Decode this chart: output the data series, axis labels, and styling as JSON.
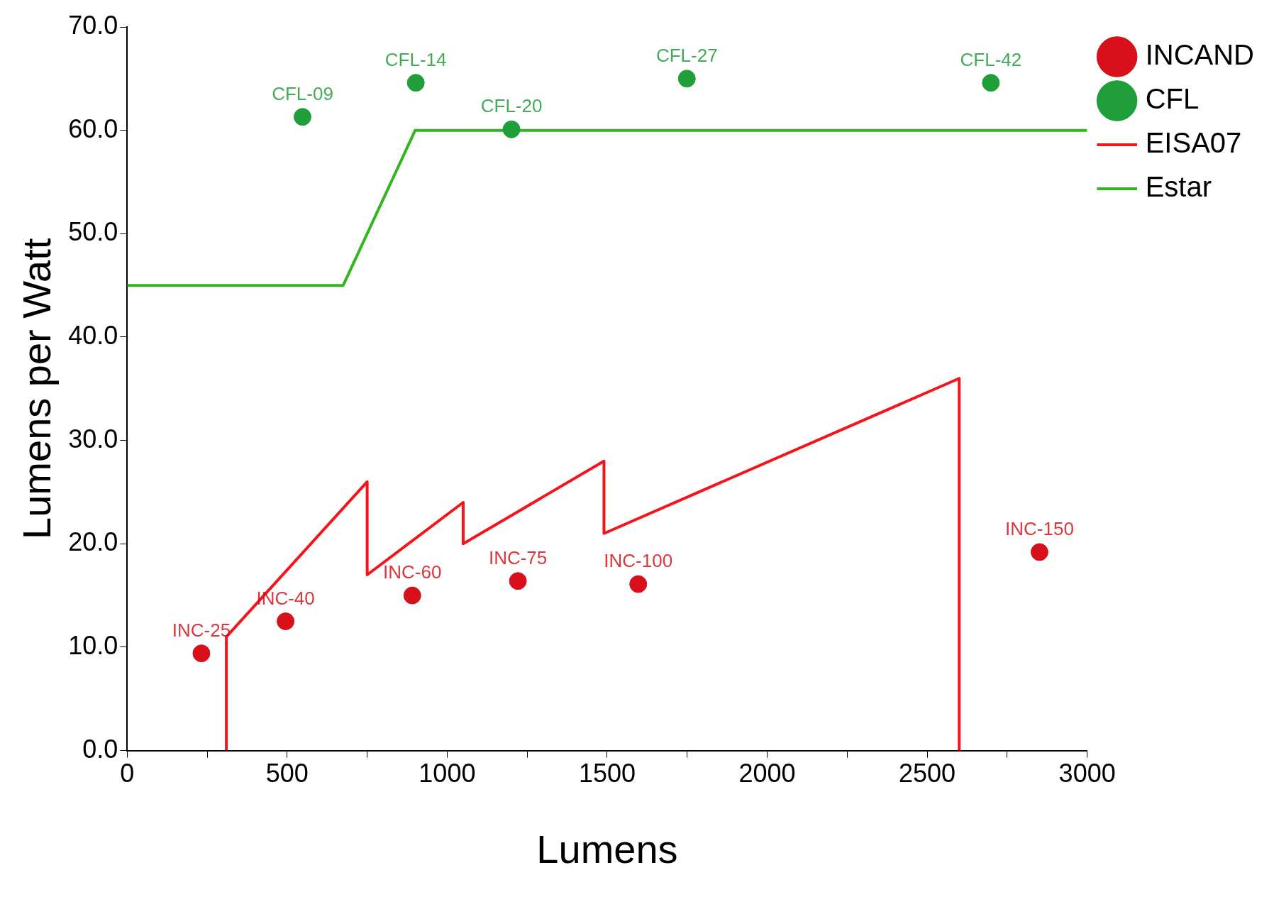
{
  "chart_data": {
    "type": "scatter",
    "xlabel": "Lumens",
    "ylabel": "Lumens per Watt",
    "xlim": [
      0,
      3000
    ],
    "xticks": [
      0,
      {
        "value": 250,
        "label": null
      },
      500,
      {
        "value": 750,
        "label": null
      },
      1000,
      {
        "value": 1250,
        "label": null
      },
      1500,
      {
        "value": 1750,
        "label": null
      },
      2000,
      {
        "value": 2250,
        "label": null
      },
      2500,
      {
        "value": 2750,
        "label": null
      },
      3000
    ],
    "ylim": [
      0,
      70
    ],
    "yticks": [
      {
        "value": 0,
        "label": "0.0"
      },
      {
        "value": 10,
        "label": "10.0"
      },
      {
        "value": 20,
        "label": "20.0"
      },
      {
        "value": 30,
        "label": "30.0"
      },
      {
        "value": 40,
        "label": "40.0"
      },
      {
        "value": 50,
        "label": "50.0"
      },
      {
        "value": 60,
        "label": "60.0"
      },
      {
        "value": 70,
        "label": "70.0"
      }
    ],
    "grid": false,
    "legend": "top right",
    "series": [
      {
        "name": "INCAND",
        "marker": "circle",
        "color": "#d8101a",
        "x": [
          232,
          495,
          891,
          1221,
          1597,
          2851
        ],
        "values": [
          9.4,
          12.5,
          15.0,
          16.4,
          16.1,
          19.2
        ]
      },
      {
        "name": "CFL",
        "marker": "circle",
        "color": "#1f9e3a",
        "x": [
          548,
          902,
          1201,
          1749,
          2699
        ],
        "values": [
          61.3,
          64.6,
          60.1,
          65.0,
          64.6
        ]
      },
      {
        "name": "EISA07",
        "type": "line",
        "color": "#f5141c",
        "x": [
          310,
          310,
          750,
          750,
          1050,
          1050,
          1490,
          1490,
          2600,
          2600
        ],
        "values": [
          0,
          11,
          26,
          17,
          24,
          20,
          28,
          21,
          36,
          0
        ]
      },
      {
        "name": "Estar",
        "type": "line",
        "color": "#33b51f",
        "x": [
          0,
          675,
          900,
          3000
        ],
        "values": [
          45,
          45,
          60,
          60
        ]
      }
    ],
    "annotations": [
      {
        "text": "INC-25",
        "x": 232,
        "y": 9.4
      },
      {
        "text": "INC-40",
        "x": 495,
        "y": 12.5
      },
      {
        "text": "INC-60",
        "x": 891,
        "y": 15.0
      },
      {
        "text": "INC-75",
        "x": 1221,
        "y": 16.4
      },
      {
        "text": "INC-100",
        "x": 1597,
        "y": 16.1
      },
      {
        "text": "INC-150",
        "x": 2851,
        "y": 19.2
      },
      {
        "text": "CFL-09",
        "x": 548,
        "y": 61.3
      },
      {
        "text": "CFL-14",
        "x": 902,
        "y": 64.6
      },
      {
        "text": "CFL-20",
        "x": 1201,
        "y": 60.1
      },
      {
        "text": "CFL-27",
        "x": 1749,
        "y": 65.0
      },
      {
        "text": "CFL-42",
        "x": 2699,
        "y": 64.6
      }
    ]
  }
}
